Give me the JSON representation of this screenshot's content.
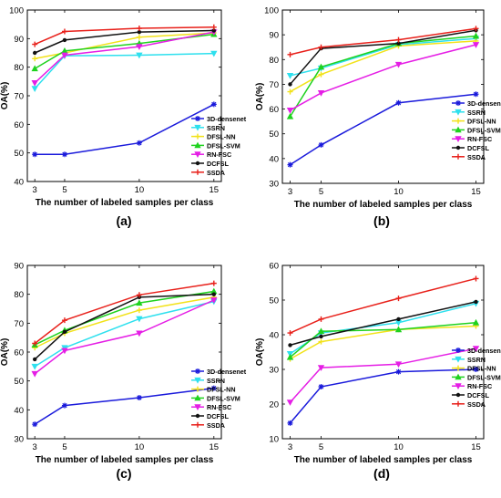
{
  "chart_data": [
    {
      "type": "line",
      "panel_label": "(a)",
      "xlabel": "The number of labeled samples per class",
      "ylabel": "OA(%)",
      "x": [
        3,
        5,
        10,
        15
      ],
      "xticks": [
        "3",
        "5",
        "10",
        "15"
      ],
      "xlim": [
        2.5,
        15.5
      ],
      "ylim": [
        40,
        100
      ],
      "yticks": [
        40,
        50,
        60,
        70,
        80,
        90,
        100
      ],
      "grid": false,
      "legend_position": "right",
      "series": [
        {
          "name": "3D-densenet",
          "color": "#1a1adb",
          "values": [
            49.5,
            49.5,
            53.5,
            67
          ]
        },
        {
          "name": "SSRN",
          "color": "#2ee0ee",
          "values": [
            72.5,
            84,
            84.2,
            84.8
          ]
        },
        {
          "name": "DFSL-NN",
          "color": "#f2e21a",
          "values": [
            83,
            85,
            90.5,
            92
          ]
        },
        {
          "name": "DFSL-SVM",
          "color": "#1fd21f",
          "values": [
            79.5,
            85.7,
            88.3,
            91.5
          ]
        },
        {
          "name": "RN-FSC",
          "color": "#e51ee5",
          "values": [
            74.5,
            84.2,
            87.2,
            92.3
          ]
        },
        {
          "name": "DCFSL",
          "color": "#111111",
          "values": [
            85,
            89.5,
            92.3,
            92.8
          ]
        },
        {
          "name": "SSDA",
          "color": "#e8201a",
          "values": [
            88,
            92.5,
            93.6,
            94
          ]
        }
      ]
    },
    {
      "type": "line",
      "panel_label": "(b)",
      "xlabel": "The number of labeled samples per class",
      "ylabel": "OA(%)",
      "x": [
        3,
        5,
        10,
        15
      ],
      "xticks": [
        "3",
        "5",
        "10",
        "15"
      ],
      "xlim": [
        2.5,
        15.5
      ],
      "ylim": [
        30,
        100
      ],
      "yticks": [
        30,
        40,
        50,
        60,
        70,
        80,
        90,
        100
      ],
      "grid": false,
      "legend_position": "right",
      "series": [
        {
          "name": "3D-densenet",
          "color": "#1a1adb",
          "values": [
            37.5,
            45.5,
            62.5,
            66
          ]
        },
        {
          "name": "SSRN",
          "color": "#2ee0ee",
          "values": [
            73.5,
            76.5,
            86,
            88.5
          ]
        },
        {
          "name": "DFSL-NN",
          "color": "#f2e21a",
          "values": [
            67,
            74,
            85.5,
            87.5
          ]
        },
        {
          "name": "DFSL-SVM",
          "color": "#1fd21f",
          "values": [
            57,
            77,
            86.5,
            89.5
          ]
        },
        {
          "name": "RN-FSC",
          "color": "#e51ee5",
          "values": [
            59.5,
            66.5,
            78,
            86
          ]
        },
        {
          "name": "DCFSL",
          "color": "#111111",
          "values": [
            70,
            84.5,
            86.5,
            91.8
          ]
        },
        {
          "name": "SSDA",
          "color": "#e8201a",
          "values": [
            82,
            85,
            88,
            92.5
          ]
        }
      ]
    },
    {
      "type": "line",
      "panel_label": "(c)",
      "xlabel": "The number of labeled samples per class",
      "ylabel": "OA(%)",
      "x": [
        3,
        5,
        10,
        15
      ],
      "xticks": [
        "3",
        "5",
        "10",
        "15"
      ],
      "xlim": [
        2.5,
        15.5
      ],
      "ylim": [
        30,
        90
      ],
      "yticks": [
        30,
        40,
        50,
        60,
        70,
        80,
        90
      ],
      "grid": false,
      "legend_position": "right",
      "series": [
        {
          "name": "3D-densenet",
          "color": "#1a1adb",
          "values": [
            35,
            41.5,
            44.2,
            47.5
          ]
        },
        {
          "name": "SSRN",
          "color": "#2ee0ee",
          "values": [
            55,
            61.5,
            71.5,
            77.5
          ]
        },
        {
          "name": "DFSL-NN",
          "color": "#f2e21a",
          "values": [
            61.5,
            66.5,
            74.5,
            79
          ]
        },
        {
          "name": "DFSL-SVM",
          "color": "#1fd21f",
          "values": [
            62.5,
            67.5,
            77,
            81
          ]
        },
        {
          "name": "RN-FSC",
          "color": "#e51ee5",
          "values": [
            52.5,
            60.5,
            66.5,
            78
          ]
        },
        {
          "name": "DCFSL",
          "color": "#111111",
          "values": [
            57.5,
            67,
            79,
            80
          ]
        },
        {
          "name": "SSDA",
          "color": "#e8201a",
          "values": [
            63,
            71,
            79.8,
            83.8
          ]
        }
      ]
    },
    {
      "type": "line",
      "panel_label": "(d)",
      "xlabel": "The number of labeled samples per class",
      "ylabel": "OA(%)",
      "x": [
        3,
        5,
        10,
        15
      ],
      "xticks": [
        "3",
        "5",
        "10",
        "15"
      ],
      "xlim": [
        2.5,
        15.5
      ],
      "ylim": [
        10,
        60
      ],
      "yticks": [
        10,
        20,
        30,
        40,
        50,
        60
      ],
      "grid": false,
      "legend_position": "right",
      "series": [
        {
          "name": "3D-densenet",
          "color": "#1a1adb",
          "values": [
            14.5,
            25,
            29.3,
            30
          ]
        },
        {
          "name": "SSRN",
          "color": "#2ee0ee",
          "values": [
            34.5,
            40.5,
            43.5,
            49
          ]
        },
        {
          "name": "DFSL-NN",
          "color": "#f2e21a",
          "values": [
            33,
            38,
            41.5,
            42.5
          ]
        },
        {
          "name": "DFSL-SVM",
          "color": "#1fd21f",
          "values": [
            33.5,
            41,
            41.5,
            43.5
          ]
        },
        {
          "name": "RN-FSC",
          "color": "#e51ee5",
          "values": [
            20.5,
            30.5,
            31.5,
            36
          ]
        },
        {
          "name": "DCFSL",
          "color": "#111111",
          "values": [
            37,
            39.5,
            44.5,
            49.5
          ]
        },
        {
          "name": "SSDA",
          "color": "#e8201a",
          "values": [
            40.5,
            44.5,
            50.5,
            56.2
          ]
        }
      ]
    }
  ]
}
